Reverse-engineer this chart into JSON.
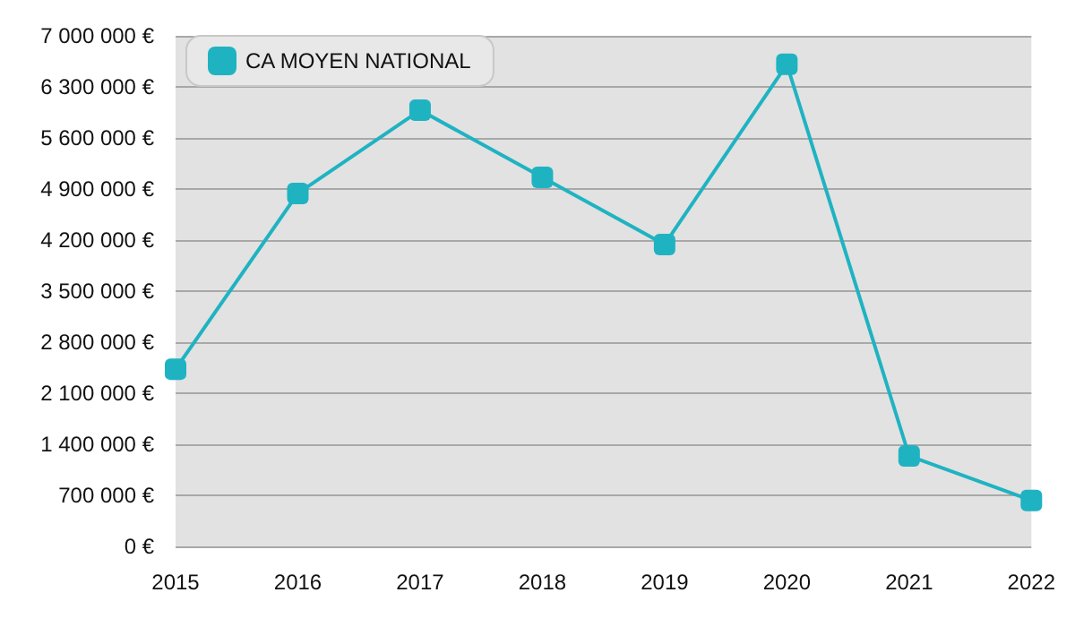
{
  "chart_data": {
    "type": "line",
    "categories": [
      "2015",
      "2016",
      "2017",
      "2018",
      "2019",
      "2020",
      "2021",
      "2022"
    ],
    "series": [
      {
        "name": "CA MOYEN NATIONAL",
        "color": "#1fb3c2",
        "values": [
          2430000,
          4840000,
          5980000,
          5060000,
          4140000,
          6610000,
          1240000,
          630000
        ]
      }
    ],
    "ylim": [
      0,
      7000000
    ],
    "yticks": [
      {
        "value": 0,
        "label": "0 €"
      },
      {
        "value": 700000,
        "label": "700 000 €"
      },
      {
        "value": 1400000,
        "label": "1 400 000 €"
      },
      {
        "value": 2100000,
        "label": "2 100 000 €"
      },
      {
        "value": 2800000,
        "label": "2 800 000 €"
      },
      {
        "value": 3500000,
        "label": "3 500 000 €"
      },
      {
        "value": 4200000,
        "label": "4 200 000 €"
      },
      {
        "value": 4900000,
        "label": "4 900 000 €"
      },
      {
        "value": 5600000,
        "label": "5 600 000 €"
      },
      {
        "value": 6300000,
        "label": "6 300 000 €"
      },
      {
        "value": 7000000,
        "label": "7 000 000 €"
      }
    ],
    "grid": "y",
    "legend": "top left",
    "marker": "square",
    "line_style": "solid"
  }
}
